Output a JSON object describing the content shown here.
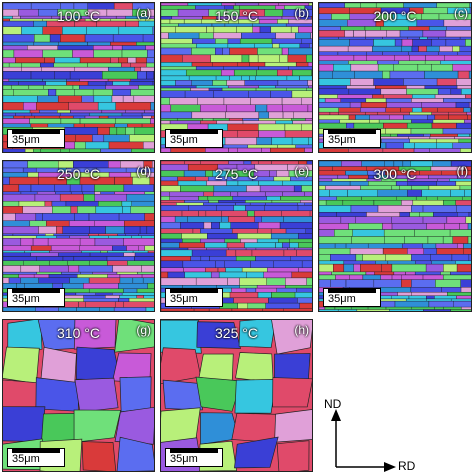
{
  "panels": [
    {
      "id": "a",
      "temp": "100 °C",
      "tag": "(a)",
      "scale": "35μm",
      "texture": "fine"
    },
    {
      "id": "b",
      "temp": "150 °C",
      "tag": "(b)",
      "scale": "35μm",
      "texture": "fine"
    },
    {
      "id": "c",
      "temp": "200 °C",
      "tag": "(c)",
      "scale": "35μm",
      "texture": "fine"
    },
    {
      "id": "d",
      "temp": "250 °C",
      "tag": "(d)",
      "scale": "35μm",
      "texture": "fine"
    },
    {
      "id": "e",
      "temp": "275 °C",
      "tag": "(e)",
      "scale": "35μm",
      "texture": "fine"
    },
    {
      "id": "f",
      "temp": "300 °C",
      "tag": "(f)",
      "scale": "35μm",
      "texture": "fine"
    },
    {
      "id": "g",
      "temp": "310 °C",
      "tag": "(g)",
      "scale": "35μm",
      "texture": "coarse"
    },
    {
      "id": "h",
      "temp": "325 °C",
      "tag": "(h)",
      "scale": "35μm",
      "texture": "coarse"
    }
  ],
  "axes": {
    "vertical": "ND",
    "horizontal": "RD"
  },
  "colors": {
    "grain_palette": [
      "#3a3fd6",
      "#4a55e8",
      "#5b6df0",
      "#2f8fd8",
      "#36c6e0",
      "#6fe07a",
      "#49c85a",
      "#b8f07a",
      "#e04a6a",
      "#d93a3a",
      "#c85ad8",
      "#9a5ae0",
      "#e0a0d8"
    ]
  }
}
